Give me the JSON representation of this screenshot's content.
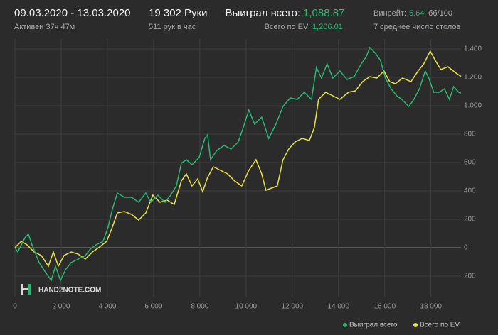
{
  "header": {
    "date_range": "09.03.2020 - 13.03.2020",
    "active": "Активен 37ч 47м",
    "hands": "19 302 Руки",
    "hands_per_hour": "511 рук в час",
    "won_label": "Выиграл всего:",
    "won_value": "1,088.87",
    "ev_label": "Всего по EV:",
    "ev_value": "1,206.01",
    "winrate_label": "Винрейт:",
    "winrate_value": "5.64",
    "winrate_unit": "бб/100",
    "tables": "7 среднее число столов"
  },
  "logo": "HAND2NOTE.COM",
  "chart_data": {
    "type": "line",
    "xlim": [
      0,
      19302
    ],
    "ylim": [
      -345,
      1470
    ],
    "grid": true,
    "xticks": [
      0,
      {
        "value": 2000,
        "label": "2 000"
      },
      {
        "value": 4000,
        "label": "4 000"
      },
      {
        "value": 6000,
        "label": "6 000"
      },
      {
        "value": 8000,
        "label": "8 000"
      },
      {
        "value": 10000,
        "label": "10 000"
      },
      {
        "value": 12000,
        "label": "12 000"
      },
      {
        "value": 14000,
        "label": "14 000"
      },
      {
        "value": 16000,
        "label": "16 000"
      },
      {
        "value": 18000,
        "label": "18 000"
      }
    ],
    "yticks": [
      {
        "value": 1400,
        "label": "1.400"
      },
      {
        "value": 1200,
        "label": "1.200"
      },
      {
        "value": 1000,
        "label": "1.000"
      },
      800,
      600,
      400,
      200,
      0,
      {
        "value": -200,
        "label": "200"
      }
    ],
    "series": [
      {
        "name": "Выиграл всего",
        "color": "#2bb673",
        "x": [
          0,
          123,
          431,
          585,
          738,
          1046,
          1354,
          1569,
          1754,
          1969,
          2185,
          2431,
          2738,
          3046,
          3292,
          3508,
          3815,
          4031,
          4215,
          4431,
          4738,
          5046,
          5354,
          5662,
          5877,
          6185,
          6492,
          6738,
          6985,
          7200,
          7415,
          7662,
          7969,
          8215,
          8338,
          8462,
          8738,
          9046,
          9354,
          9662,
          9877,
          10123,
          10369,
          10677,
          10985,
          11292,
          11600,
          11908,
          12215,
          12523,
          12831,
          13046,
          13262,
          13508,
          13754,
          14062,
          14369,
          14677,
          14985,
          15200,
          15354,
          15600,
          15815,
          16031,
          16277,
          16523,
          16738,
          17046,
          17262,
          17508,
          17754,
          17908,
          18123,
          18369,
          18585,
          18800,
          18985,
          19200,
          19302
        ],
        "values": [
          0,
          -30,
          70,
          95,
          20,
          -105,
          -180,
          -230,
          -130,
          -230,
          -155,
          -105,
          -80,
          -55,
          -5,
          20,
          45,
          145,
          270,
          385,
          355,
          355,
          320,
          385,
          320,
          370,
          320,
          370,
          435,
          595,
          620,
          585,
          635,
          770,
          795,
          620,
          685,
          720,
          695,
          745,
          845,
          970,
          870,
          920,
          770,
          870,
          995,
          1055,
          1045,
          1095,
          1045,
          1270,
          1195,
          1295,
          1195,
          1245,
          1185,
          1205,
          1295,
          1345,
          1410,
          1370,
          1320,
          1195,
          1120,
          1070,
          1045,
          995,
          1045,
          1120,
          1245,
          1195,
          1095,
          1095,
          1120,
          1045,
          1135,
          1095,
          1088.87
        ]
      },
      {
        "name": "Всего по EV",
        "color": "#e9e43c",
        "x": [
          0,
          277,
          523,
          831,
          1138,
          1446,
          1662,
          1877,
          2123,
          2431,
          2738,
          3046,
          3354,
          3662,
          3969,
          4215,
          4431,
          4738,
          5046,
          5354,
          5662,
          5969,
          6277,
          6585,
          6892,
          7200,
          7415,
          7662,
          7908,
          8123,
          8338,
          8585,
          8892,
          9200,
          9508,
          9815,
          10123,
          10431,
          10677,
          10862,
          11108,
          11354,
          11600,
          11846,
          12123,
          12431,
          12738,
          12954,
          13138,
          13446,
          13754,
          14062,
          14431,
          14738,
          15046,
          15354,
          15662,
          15969,
          16215,
          16462,
          16769,
          17138,
          17446,
          17692,
          17969,
          18185,
          18431,
          18738,
          19046,
          19302
        ],
        "values": [
          0,
          45,
          20,
          -30,
          -55,
          -130,
          -30,
          -130,
          -55,
          -30,
          -45,
          -80,
          -30,
          5,
          45,
          145,
          245,
          255,
          235,
          195,
          245,
          370,
          320,
          335,
          305,
          470,
          520,
          435,
          485,
          395,
          495,
          570,
          545,
          520,
          470,
          435,
          545,
          620,
          520,
          405,
          420,
          435,
          620,
          695,
          745,
          770,
          755,
          845,
          1045,
          1095,
          1070,
          1045,
          1095,
          1105,
          1170,
          1205,
          1195,
          1245,
          1170,
          1155,
          1195,
          1170,
          1245,
          1295,
          1385,
          1320,
          1255,
          1275,
          1235,
          1206.01
        ]
      }
    ]
  }
}
